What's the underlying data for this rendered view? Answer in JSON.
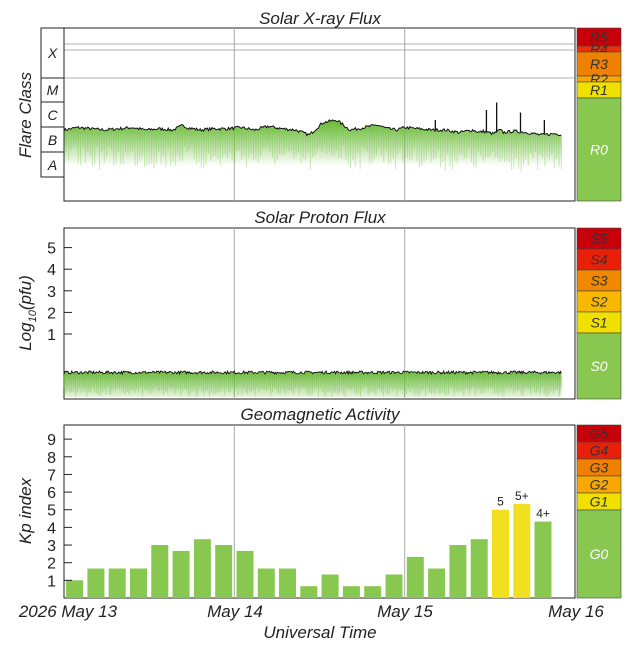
{
  "chart_data": [
    {
      "type": "area",
      "title": "Solar X-ray Flux",
      "ylabel": "Flare Class",
      "class_labels": [
        "X",
        "M",
        "C",
        "B",
        "A"
      ],
      "scale": [
        {
          "label": "R5",
          "color": "#c8000a"
        },
        {
          "label": "R4",
          "color": "#e8300a"
        },
        {
          "label": "R3",
          "color": "#f08000"
        },
        {
          "label": "R2",
          "color": "#f8a800"
        },
        {
          "label": "R1",
          "color": "#f0e000"
        },
        {
          "label": "R0",
          "color": "#88c850"
        }
      ],
      "x_range_days": [
        0,
        3
      ],
      "y_range_log": [
        -9,
        -3
      ],
      "series": [
        {
          "x": [
            0,
            0.08,
            0.16,
            0.24,
            0.32,
            0.4,
            0.48,
            0.56,
            0.64,
            0.7,
            0.72,
            0.8,
            0.88,
            0.96,
            1.04,
            1.12,
            1.2,
            1.28,
            1.36,
            1.44,
            1.52,
            1.6,
            1.68,
            1.76,
            1.84,
            1.9,
            1.95,
            2.0,
            2.08,
            2.16,
            2.24,
            2.32,
            2.4,
            2.44,
            2.46,
            2.52,
            2.56,
            2.58,
            2.64,
            2.72,
            2.8,
            2.88,
            2.96
          ],
          "y": [
            -6.6,
            -6.5,
            -6.55,
            -6.6,
            -6.55,
            -6.5,
            -6.6,
            -6.55,
            -6.6,
            -6.4,
            -6.5,
            -6.6,
            -6.55,
            -6.55,
            -6.5,
            -6.6,
            -6.45,
            -6.55,
            -6.6,
            -6.8,
            -6.3,
            -6.2,
            -6.6,
            -6.5,
            -6.4,
            -6.55,
            -6.6,
            -6.5,
            -6.55,
            -6.6,
            -6.6,
            -6.7,
            -6.6,
            -6.7,
            -6.65,
            -6.75,
            -6.6,
            -6.7,
            -6.65,
            -6.7,
            -6.8,
            -6.75,
            -6.8
          ],
          "spikes": [
            {
              "x": 2.48,
              "y": -5.8
            },
            {
              "x": 2.54,
              "y": -5.5
            },
            {
              "x": 2.68,
              "y": -5.9
            },
            {
              "x": 2.82,
              "y": -6.2
            },
            {
              "x": 2.18,
              "y": -6.2
            }
          ]
        }
      ]
    },
    {
      "type": "area",
      "title": "Solar Proton Flux",
      "ylabel": "Log10(pfu)",
      "ylabel_main": "Log",
      "ylabel_sub": "10",
      "ylabel_tail": "(pfu)",
      "yticks": [
        "1",
        "2",
        "3",
        "4",
        "5"
      ],
      "y_range": [
        -1.7,
        6
      ],
      "scale": [
        {
          "label": "S5",
          "color": "#c8000a"
        },
        {
          "label": "S4",
          "color": "#e8200a"
        },
        {
          "label": "S3",
          "color": "#f08800"
        },
        {
          "label": "S2",
          "color": "#f8b800"
        },
        {
          "label": "S1",
          "color": "#f0e000"
        },
        {
          "label": "S0",
          "color": "#88c850"
        }
      ],
      "series": [
        {
          "level": -0.78
        }
      ]
    },
    {
      "type": "bar",
      "title": "Geomagnetic Activity",
      "ylabel": "Kp index",
      "xlabel": "Universal Time",
      "yticks": [
        "1",
        "2",
        "3",
        "4",
        "5",
        "6",
        "7",
        "8",
        "9"
      ],
      "ylim": [
        0,
        9.8
      ],
      "x_ticks": [
        "2026 May 13",
        "May 14",
        "May 15",
        "May 16"
      ],
      "scale": [
        {
          "label": "G5",
          "color": "#c8000a"
        },
        {
          "label": "G4",
          "color": "#e8200a"
        },
        {
          "label": "G3",
          "color": "#f08000"
        },
        {
          "label": "G2",
          "color": "#f8a800"
        },
        {
          "label": "G1",
          "color": "#f0e000"
        },
        {
          "label": "G0",
          "color": "#88c850"
        }
      ],
      "values": [
        1.0,
        1.67,
        1.67,
        1.67,
        3.0,
        2.67,
        3.33,
        3.0,
        2.67,
        1.67,
        1.67,
        0.67,
        1.33,
        0.67,
        0.67,
        1.33,
        2.33,
        1.67,
        3.0,
        3.33,
        5.0,
        5.33,
        4.33
      ],
      "bar_labels": [
        "",
        "",
        "",
        "",
        "",
        "",
        "",
        "",
        "",
        "",
        "",
        "",
        "",
        "",
        "",
        "",
        "",
        "",
        "",
        "",
        "5",
        "5+",
        "4+"
      ],
      "colors": {
        "quiet": "#88c850",
        "storm": "#f0e020"
      }
    }
  ]
}
